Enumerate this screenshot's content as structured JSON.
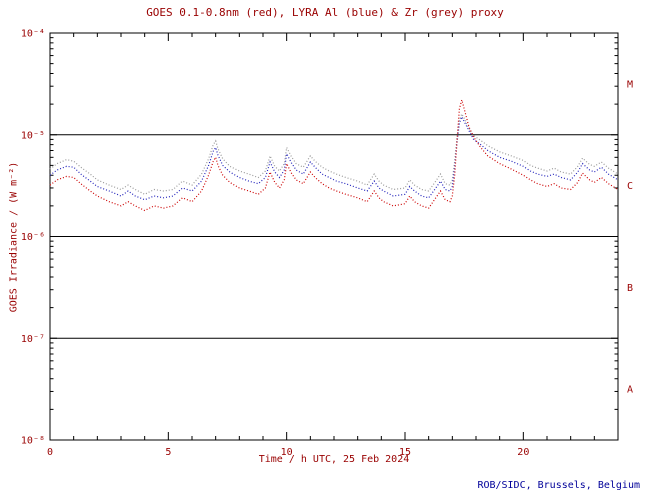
{
  "credit": "ROB/SIDC, Brussels, Belgium",
  "colors": {
    "axis": "#000000",
    "text": "#990000",
    "footer_text": "#000099",
    "background": "#ffffff"
  },
  "chart_data": {
    "type": "line",
    "title": "GOES 0.1-0.8nm (red), LYRA Al (blue) & Zr (grey) proxy",
    "xlabel": "Time / h UTC, 25 Feb 2024",
    "ylabel": "GOES Irradiance / (W m⁻²)",
    "grid": false,
    "y_scale": "log",
    "x_range": [
      0,
      24
    ],
    "y_range": [
      1e-08,
      0.0001
    ],
    "x_major_ticks": [
      0,
      5,
      10,
      15,
      20
    ],
    "x_minor_step": 1,
    "y_ticks": [
      {
        "value": 0.0001,
        "label": "10⁻⁴"
      },
      {
        "value": 1e-05,
        "label": "10⁻⁵"
      },
      {
        "value": 1e-06,
        "label": "10⁻⁶"
      },
      {
        "value": 1e-07,
        "label": "10⁻⁷"
      },
      {
        "value": 1e-08,
        "label": "10⁻⁸"
      }
    ],
    "hlines": [
      1e-05,
      1e-06,
      1e-07
    ],
    "class_bands": [
      {
        "label": "M",
        "value": 3.16e-05
      },
      {
        "label": "C",
        "value": 3.16e-06
      },
      {
        "label": "B",
        "value": 3.16e-07
      },
      {
        "label": "A",
        "value": 3.16e-08
      }
    ],
    "x": [
      0,
      0.3,
      0.7,
      1,
      1.3,
      1.7,
      2,
      2.5,
      3,
      3.3,
      3.6,
      4,
      4.4,
      4.8,
      5.2,
      5.6,
      6,
      6.4,
      6.7,
      6.9,
      7,
      7.1,
      7.3,
      7.6,
      8,
      8.4,
      8.8,
      9.1,
      9.3,
      9.5,
      9.7,
      9.9,
      10,
      10.2,
      10.4,
      10.7,
      11,
      11.2,
      11.5,
      11.8,
      12.1,
      12.5,
      13,
      13.4,
      13.7,
      13.9,
      14.1,
      14.5,
      15,
      15.2,
      15.4,
      15.7,
      16,
      16.3,
      16.5,
      16.7,
      16.9,
      17,
      17.1,
      17.2,
      17.3,
      17.4,
      17.5,
      17.7,
      17.9,
      18.2,
      18.5,
      19,
      19.5,
      20,
      20.3,
      20.6,
      21,
      21.3,
      21.6,
      22,
      22.3,
      22.5,
      22.8,
      23,
      23.3,
      23.6,
      24
    ],
    "series": [
      {
        "name": "GOES 0.1-0.8nm",
        "color": "#cc0000",
        "style": "dotted",
        "values": [
          3.2e-06,
          3.6e-06,
          3.9e-06,
          3.8e-06,
          3.3e-06,
          2.8e-06,
          2.5e-06,
          2.2e-06,
          2e-06,
          2.2e-06,
          2e-06,
          1.8e-06,
          2e-06,
          1.9e-06,
          2e-06,
          2.4e-06,
          2.2e-06,
          2.8e-06,
          4e-06,
          5.5e-06,
          6e-06,
          5e-06,
          4e-06,
          3.4e-06,
          3e-06,
          2.8e-06,
          2.6e-06,
          3e-06,
          4.3e-06,
          3.4e-06,
          3e-06,
          3.6e-06,
          5.2e-06,
          4.2e-06,
          3.6e-06,
          3.3e-06,
          4.3e-06,
          3.8e-06,
          3.3e-06,
          3e-06,
          2.8e-06,
          2.6e-06,
          2.4e-06,
          2.2e-06,
          2.8e-06,
          2.4e-06,
          2.2e-06,
          2e-06,
          2.1e-06,
          2.5e-06,
          2.2e-06,
          2e-06,
          1.9e-06,
          2.4e-06,
          2.8e-06,
          2.3e-06,
          2.2e-06,
          2.5e-06,
          4e-06,
          9e-06,
          1.8e-05,
          2.2e-05,
          1.8e-05,
          1.2e-05,
          9.5e-06,
          7.5e-06,
          6.2e-06,
          5.2e-06,
          4.6e-06,
          4e-06,
          3.6e-06,
          3.3e-06,
          3.1e-06,
          3.3e-06,
          3e-06,
          2.9e-06,
          3.4e-06,
          4.2e-06,
          3.6e-06,
          3.4e-06,
          3.8e-06,
          3.3e-06,
          2.9e-06
        ]
      },
      {
        "name": "LYRA Al proxy",
        "color": "#2222bb",
        "style": "dotted",
        "values": [
          4e-06,
          4.5e-06,
          4.9e-06,
          4.8e-06,
          4.1e-06,
          3.5e-06,
          3.1e-06,
          2.8e-06,
          2.5e-06,
          2.8e-06,
          2.5e-06,
          2.3e-06,
          2.5e-06,
          2.4e-06,
          2.5e-06,
          3e-06,
          2.8e-06,
          3.5e-06,
          5e-06,
          6.9e-06,
          7.5e-06,
          6.3e-06,
          5e-06,
          4.3e-06,
          3.8e-06,
          3.5e-06,
          3.3e-06,
          3.8e-06,
          5.4e-06,
          4.3e-06,
          3.8e-06,
          4.5e-06,
          6.5e-06,
          5.3e-06,
          4.5e-06,
          4.1e-06,
          5.4e-06,
          4.8e-06,
          4.1e-06,
          3.8e-06,
          3.5e-06,
          3.3e-06,
          3e-06,
          2.8e-06,
          3.5e-06,
          3e-06,
          2.8e-06,
          2.5e-06,
          2.6e-06,
          3.1e-06,
          2.8e-06,
          2.5e-06,
          2.4e-06,
          3e-06,
          3.5e-06,
          2.9e-06,
          2.8e-06,
          3.1e-06,
          4.8e-06,
          8.5e-06,
          1.3e-05,
          1.5e-05,
          1.35e-05,
          1.1e-05,
          9e-06,
          8e-06,
          7e-06,
          6e-06,
          5.5e-06,
          4.9e-06,
          4.4e-06,
          4.1e-06,
          3.9e-06,
          4.1e-06,
          3.8e-06,
          3.6e-06,
          4.3e-06,
          5.2e-06,
          4.5e-06,
          4.3e-06,
          4.8e-06,
          4.1e-06,
          3.6e-06
        ]
      },
      {
        "name": "LYRA Zr proxy",
        "color": "#999999",
        "style": "dotted",
        "values": [
          4.6e-06,
          5.2e-06,
          5.7e-06,
          5.5e-06,
          4.8e-06,
          4.1e-06,
          3.6e-06,
          3.2e-06,
          2.9e-06,
          3.2e-06,
          2.9e-06,
          2.6e-06,
          2.9e-06,
          2.8e-06,
          2.9e-06,
          3.5e-06,
          3.2e-06,
          4.1e-06,
          5.8e-06,
          8e-06,
          8.7e-06,
          7.3e-06,
          5.8e-06,
          4.9e-06,
          4.4e-06,
          4.1e-06,
          3.8e-06,
          4.4e-06,
          6.2e-06,
          4.9e-06,
          4.4e-06,
          5.2e-06,
          7.5e-06,
          6.1e-06,
          5.2e-06,
          4.8e-06,
          6.2e-06,
          5.5e-06,
          4.8e-06,
          4.4e-06,
          4.1e-06,
          3.8e-06,
          3.5e-06,
          3.2e-06,
          4.1e-06,
          3.5e-06,
          3.2e-06,
          2.9e-06,
          3e-06,
          3.6e-06,
          3.2e-06,
          2.9e-06,
          2.8e-06,
          3.5e-06,
          4.1e-06,
          3.3e-06,
          3.2e-06,
          3.6e-06,
          5.5e-06,
          9.5e-06,
          1.4e-05,
          1.6e-05,
          1.45e-05,
          1.15e-05,
          9.8e-06,
          8.8e-06,
          7.8e-06,
          6.8e-06,
          6.2e-06,
          5.6e-06,
          5e-06,
          4.7e-06,
          4.4e-06,
          4.7e-06,
          4.3e-06,
          4.1e-06,
          4.9e-06,
          5.9e-06,
          5.1e-06,
          4.9e-06,
          5.4e-06,
          4.7e-06,
          4.1e-06
        ]
      }
    ]
  }
}
